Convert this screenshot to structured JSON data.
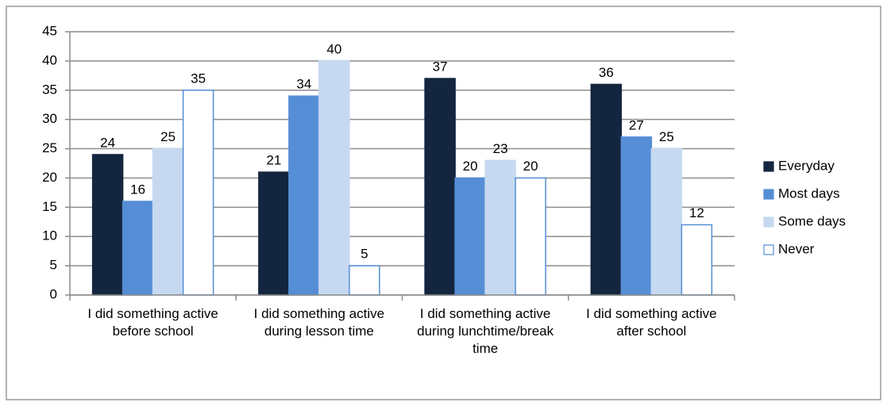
{
  "chart_data": {
    "type": "bar",
    "categories": [
      "I did something active before school",
      "I did something active during lesson time",
      "I did something active during lunchtime/break time",
      "I did something active after school"
    ],
    "series": [
      {
        "name": "Everyday",
        "color": "#14263f",
        "values": [
          24,
          21,
          37,
          36
        ]
      },
      {
        "name": "Most days",
        "color": "#558ed5",
        "values": [
          16,
          34,
          20,
          27
        ]
      },
      {
        "name": "Some days",
        "color": "#c6d9f1",
        "values": [
          25,
          40,
          23,
          25
        ]
      },
      {
        "name": "Never",
        "color": "#ffffff",
        "edgecolor": "#558ed5",
        "values": [
          35,
          5,
          20,
          12
        ]
      }
    ],
    "ylim": [
      0,
      45
    ],
    "yticks": [
      0,
      5,
      10,
      15,
      20,
      25,
      30,
      35,
      40,
      45
    ],
    "grid": true,
    "legend": "right"
  }
}
